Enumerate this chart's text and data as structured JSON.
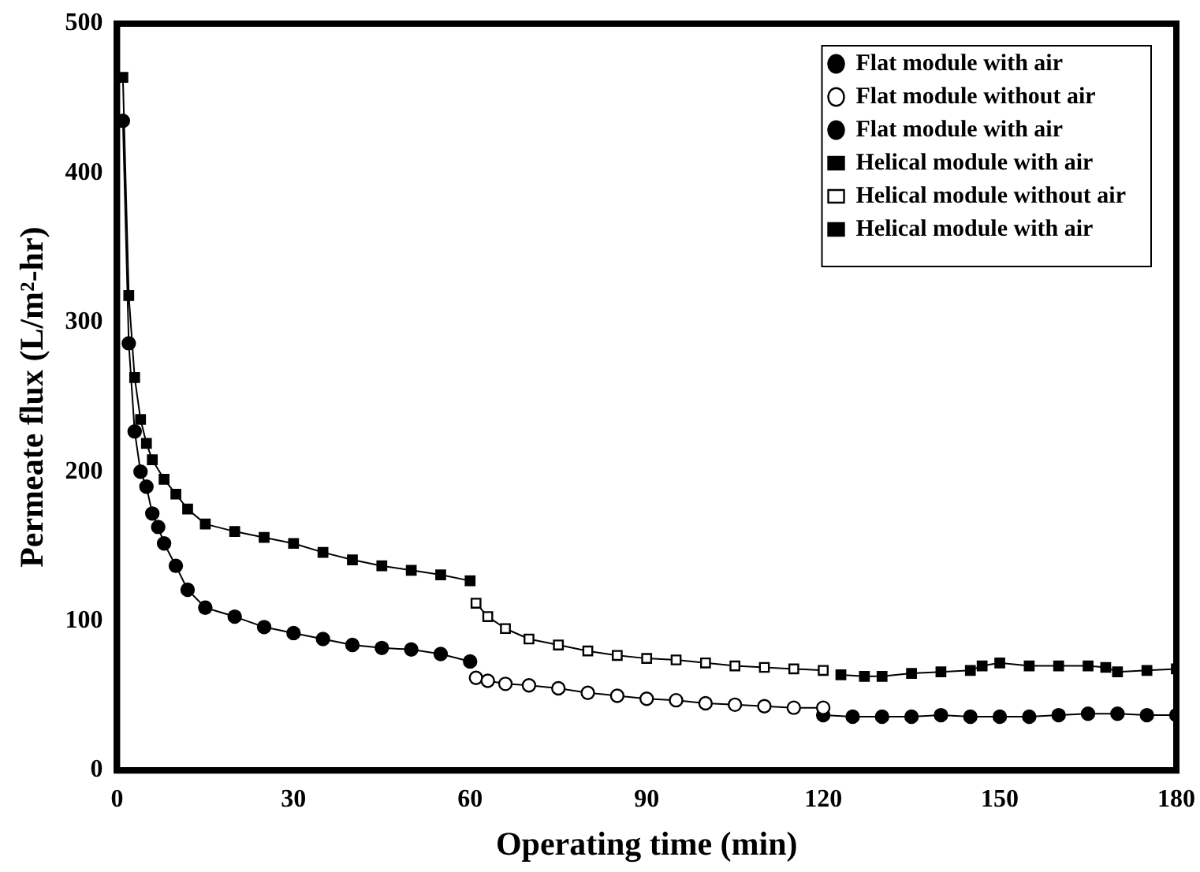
{
  "chart_data": {
    "type": "line",
    "xlabel": "Operating time (min)",
    "ylabel": "Permeate flux (L/m²-hr)",
    "xlim": [
      0,
      180
    ],
    "xticks": [
      0,
      30,
      60,
      90,
      120,
      150,
      180
    ],
    "ylim": [
      0,
      500
    ],
    "yticks": [
      0,
      100,
      200,
      300,
      400,
      500
    ],
    "grid": false,
    "legend": "top right",
    "series": [
      {
        "name": "Flat module with air",
        "color": "#000000",
        "marker": "circle",
        "x": [
          1,
          2,
          3,
          4,
          5,
          6,
          7,
          8,
          10,
          12,
          15,
          20,
          25,
          30,
          35,
          40,
          45,
          50,
          55,
          60
        ],
        "values": [
          435,
          286,
          227,
          200,
          190,
          172,
          163,
          152,
          137,
          121,
          109,
          103,
          96,
          92,
          88,
          84,
          82,
          81,
          78,
          73
        ]
      },
      {
        "name": "Flat module without air",
        "color": "#ffffff",
        "marker": "circle",
        "x": [
          61,
          63,
          66,
          70,
          75,
          80,
          85,
          90,
          95,
          100,
          105,
          110,
          115,
          120
        ],
        "values": [
          62,
          60,
          58,
          57,
          55,
          52,
          50,
          48,
          47,
          45,
          44,
          43,
          42,
          42
        ]
      },
      {
        "name": "Flat module with air",
        "color": "#000000",
        "marker": "circle",
        "x": [
          120,
          125,
          130,
          135,
          140,
          145,
          150,
          155,
          160,
          165,
          170,
          175,
          180
        ],
        "values": [
          37,
          36,
          36,
          36,
          37,
          36,
          36,
          36,
          37,
          38,
          38,
          37,
          37
        ]
      },
      {
        "name": "Helical module with air",
        "color": "#000000",
        "marker": "square",
        "x": [
          1,
          2,
          3,
          4,
          5,
          6,
          8,
          10,
          12,
          15,
          20,
          25,
          30,
          35,
          40,
          45,
          50,
          55,
          60
        ],
        "values": [
          464,
          318,
          263,
          235,
          219,
          208,
          195,
          185,
          175,
          165,
          160,
          156,
          152,
          146,
          141,
          137,
          134,
          131,
          127
        ]
      },
      {
        "name": "Helical module without air",
        "color": "#ffffff",
        "marker": "square",
        "x": [
          61,
          63,
          66,
          70,
          75,
          80,
          85,
          90,
          95,
          100,
          105,
          110,
          115,
          120
        ],
        "values": [
          112,
          103,
          95,
          88,
          84,
          80,
          77,
          75,
          74,
          72,
          70,
          69,
          68,
          67
        ]
      },
      {
        "name": "Helical module with air",
        "color": "#000000",
        "marker": "square",
        "x": [
          123,
          127,
          130,
          135,
          140,
          145,
          147,
          150,
          155,
          160,
          165,
          168,
          170,
          175,
          180
        ],
        "values": [
          64,
          63,
          63,
          65,
          66,
          67,
          70,
          72,
          70,
          70,
          70,
          69,
          66,
          67,
          68
        ]
      }
    ]
  }
}
